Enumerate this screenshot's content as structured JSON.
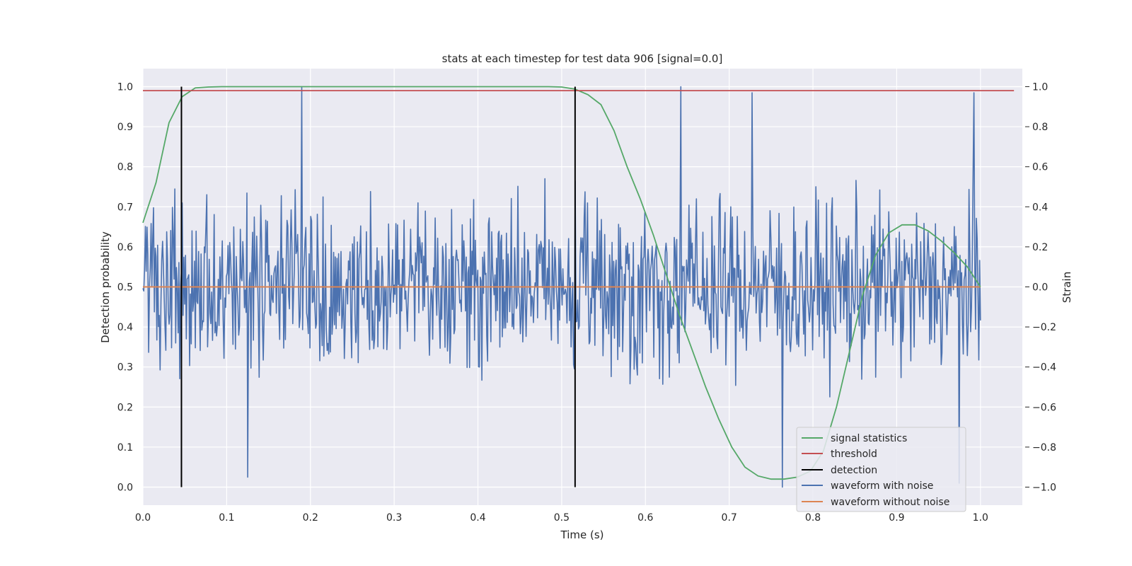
{
  "chart_data": {
    "type": "line",
    "title": "stats at each timestep for test data 906 [signal=0.0]",
    "xlabel": "Time (s)",
    "ylabel": "Detection probability",
    "y2label": "Strain",
    "xlim": [
      0.0,
      1.05
    ],
    "ylim": [
      -0.045,
      1.045
    ],
    "y2lim": [
      -1.09,
      1.09
    ],
    "x_ticks": [
      "0.0",
      "0.1",
      "0.2",
      "0.3",
      "0.4",
      "0.5",
      "0.6",
      "0.7",
      "0.8",
      "0.9",
      "1.0"
    ],
    "y_ticks": [
      "0.0",
      "0.1",
      "0.2",
      "0.3",
      "0.4",
      "0.5",
      "0.6",
      "0.7",
      "0.8",
      "0.9",
      "1.0"
    ],
    "y2_ticks": [
      "−1.0",
      "−0.8",
      "−0.6",
      "−0.4",
      "−0.2",
      "0.0",
      "0.2",
      "0.4",
      "0.6",
      "0.8",
      "1.0"
    ],
    "grid": true,
    "legend_position": "lower-right",
    "colors": {
      "background": "#eaeaf2",
      "grid": "#ffffff",
      "signal_statistics": "#55a868",
      "threshold": "#c44e52",
      "detection": "#000000",
      "waveform_with_noise": "#4c72b0",
      "waveform_without_noise": "#dd8452"
    },
    "series": [
      {
        "name": "signal statistics",
        "axis": "left",
        "x": [
          0.0,
          0.0156,
          0.0312,
          0.0469,
          0.0625,
          0.0781,
          0.0938,
          0.1094,
          0.125,
          0.1406,
          0.1563,
          0.1719,
          0.1875,
          0.2031,
          0.2188,
          0.2344,
          0.25,
          0.2656,
          0.2813,
          0.2969,
          0.3125,
          0.3281,
          0.3438,
          0.3594,
          0.375,
          0.3906,
          0.4063,
          0.4219,
          0.4375,
          0.4531,
          0.4688,
          0.4844,
          0.5,
          0.5156,
          0.5313,
          0.5469,
          0.5625,
          0.5781,
          0.5938,
          0.6094,
          0.625,
          0.6406,
          0.6563,
          0.6719,
          0.6875,
          0.7031,
          0.7188,
          0.7344,
          0.75,
          0.7656,
          0.7813,
          0.7969,
          0.8125,
          0.8281,
          0.8438,
          0.8594,
          0.875,
          0.8906,
          0.9063,
          0.9219,
          0.9375,
          0.9531,
          0.9688,
          0.9844,
          1.0
        ],
        "y": [
          0.66,
          0.76,
          0.91,
          0.975,
          0.997,
          0.999,
          1.0,
          1.0,
          1.0,
          1.0,
          1.0,
          1.0,
          1.0,
          1.0,
          1.0,
          1.0,
          1.0,
          1.0,
          1.0,
          1.0,
          1.0,
          1.0,
          1.0,
          1.0,
          1.0,
          1.0,
          1.0,
          1.0,
          1.0,
          1.0,
          1.0,
          1.0,
          0.999,
          0.994,
          0.98,
          0.955,
          0.89,
          0.8,
          0.72,
          0.63,
          0.53,
          0.43,
          0.34,
          0.25,
          0.17,
          0.1,
          0.05,
          0.028,
          0.02,
          0.02,
          0.025,
          0.04,
          0.09,
          0.2,
          0.34,
          0.48,
          0.58,
          0.635,
          0.655,
          0.655,
          0.64,
          0.615,
          0.585,
          0.55,
          0.5
        ]
      },
      {
        "name": "threshold",
        "axis": "left",
        "x": [
          0.0,
          1.04
        ],
        "y": [
          0.99,
          0.99
        ]
      },
      {
        "name": "detection",
        "axis": "left",
        "type": "vlines",
        "x": [
          0.046,
          0.516
        ],
        "y": [
          0.0,
          1.0
        ]
      },
      {
        "name": "waveform with noise",
        "axis": "right",
        "x_range": [
          0.0,
          1.0
        ],
        "points": 1024,
        "amplitude": 0.33,
        "peaks": [
          [
            0.19,
            1.0
          ],
          [
            0.642,
            1.0
          ],
          [
            0.727,
            0.97
          ],
          [
            0.992,
            0.97
          ],
          [
            0.763,
            -1.0
          ],
          [
            0.125,
            -0.95
          ],
          [
            0.975,
            -0.98
          ]
        ]
      },
      {
        "name": "waveform without noise",
        "axis": "right",
        "x": [
          0.0,
          1.0
        ],
        "y": [
          0.0,
          0.0
        ]
      }
    ]
  }
}
